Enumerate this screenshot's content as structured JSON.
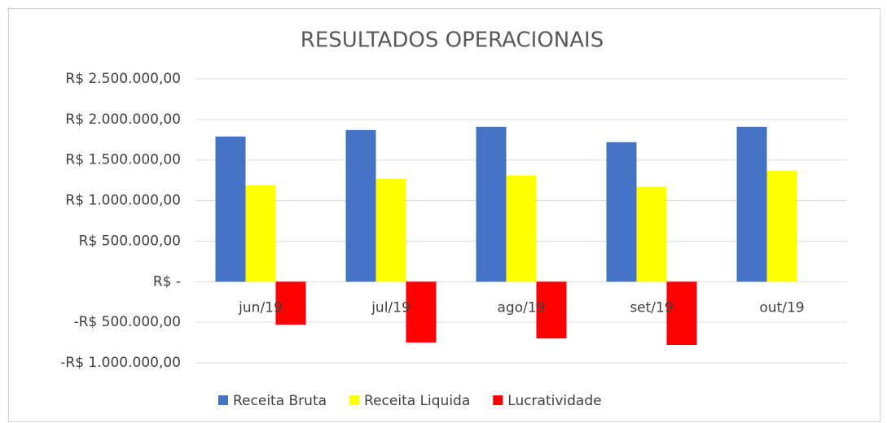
{
  "chart_data": {
    "type": "bar",
    "title": "RESULTADOS OPERACIONAIS",
    "categories": [
      "jun/19",
      "jul/19",
      "ago/19",
      "set/19",
      "out/19"
    ],
    "series": [
      {
        "name": "Receita Bruta",
        "color": "#4472c4",
        "values": [
          1790000,
          1870000,
          1910000,
          1720000,
          1910000
        ]
      },
      {
        "name": "Receita Liquida",
        "color": "#ffff00",
        "values": [
          1190000,
          1270000,
          1310000,
          1170000,
          1370000
        ]
      },
      {
        "name": "Lucratividade",
        "color": "#ff0000",
        "values": [
          -530000,
          -750000,
          -700000,
          -780000,
          null
        ]
      }
    ],
    "ylim": [
      -1000000,
      2500000
    ],
    "yticks": [
      {
        "value": -1000000,
        "label": "-R$ 1.000.000,00"
      },
      {
        "value": -500000,
        "label": "-R$ 500.000,00"
      },
      {
        "value": 0,
        "label": "R$ -"
      },
      {
        "value": 500000,
        "label": "R$ 500.000,00"
      },
      {
        "value": 1000000,
        "label": "R$ 1.000.000,00"
      },
      {
        "value": 1500000,
        "label": "R$ 1.500.000,00"
      },
      {
        "value": 2000000,
        "label": "R$ 2.000.000,00"
      },
      {
        "value": 2500000,
        "label": "R$ 2.500.000,00"
      }
    ],
    "grid": true,
    "legend": "bottom"
  }
}
